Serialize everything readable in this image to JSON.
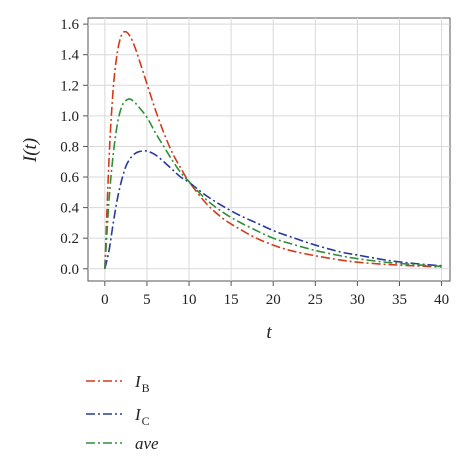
{
  "chart_data": {
    "type": "line",
    "title": "",
    "xlabel": "t",
    "ylabel": "I(t)",
    "xlim": [
      -2,
      41
    ],
    "ylim": [
      -0.08,
      1.64
    ],
    "xticks": [
      0,
      5,
      10,
      15,
      20,
      25,
      30,
      35,
      40
    ],
    "xtick_labels": [
      "0",
      "5",
      "10",
      "15",
      "20",
      "25",
      "30",
      "35",
      "40"
    ],
    "yticks": [
      0.0,
      0.2,
      0.4,
      0.6,
      0.8,
      1.0,
      1.2,
      1.4,
      1.6
    ],
    "ytick_labels": [
      "0.0",
      "0.2",
      "0.4",
      "0.6",
      "0.8",
      "1.0",
      "1.2",
      "1.4",
      "1.6"
    ],
    "grid": true,
    "legend_position": "bottom",
    "x": [
      0,
      0.5,
      1,
      1.5,
      2,
      2.5,
      3,
      3.5,
      4,
      5,
      6,
      7,
      8,
      9,
      10,
      12,
      14,
      16,
      18,
      20,
      22,
      25,
      28,
      30,
      33,
      35,
      38,
      40
    ],
    "series": [
      {
        "name": "I_B",
        "label_main": "I",
        "label_sub": "B",
        "color": "#d43a1a",
        "values": [
          0.0,
          0.72,
          1.18,
          1.42,
          1.53,
          1.55,
          1.52,
          1.46,
          1.38,
          1.21,
          1.04,
          0.89,
          0.76,
          0.66,
          0.57,
          0.43,
          0.33,
          0.26,
          0.2,
          0.155,
          0.12,
          0.085,
          0.057,
          0.043,
          0.03,
          0.024,
          0.016,
          0.012
        ]
      },
      {
        "name": "I_C",
        "label_main": "I",
        "label_sub": "C",
        "color": "#2a3a9c",
        "values": [
          0.0,
          0.12,
          0.3,
          0.46,
          0.58,
          0.67,
          0.72,
          0.75,
          0.765,
          0.77,
          0.745,
          0.7,
          0.65,
          0.6,
          0.565,
          0.48,
          0.41,
          0.35,
          0.3,
          0.25,
          0.21,
          0.155,
          0.11,
          0.09,
          0.06,
          0.045,
          0.028,
          0.02
        ]
      },
      {
        "name": "ave",
        "label_main": "ave",
        "label_sub": "",
        "color": "#2f8f3a",
        "values": [
          0.0,
          0.45,
          0.75,
          0.95,
          1.06,
          1.1,
          1.11,
          1.09,
          1.06,
          0.99,
          0.89,
          0.8,
          0.71,
          0.63,
          0.57,
          0.455,
          0.37,
          0.305,
          0.25,
          0.2,
          0.165,
          0.12,
          0.085,
          0.066,
          0.045,
          0.035,
          0.022,
          0.016
        ]
      }
    ]
  }
}
